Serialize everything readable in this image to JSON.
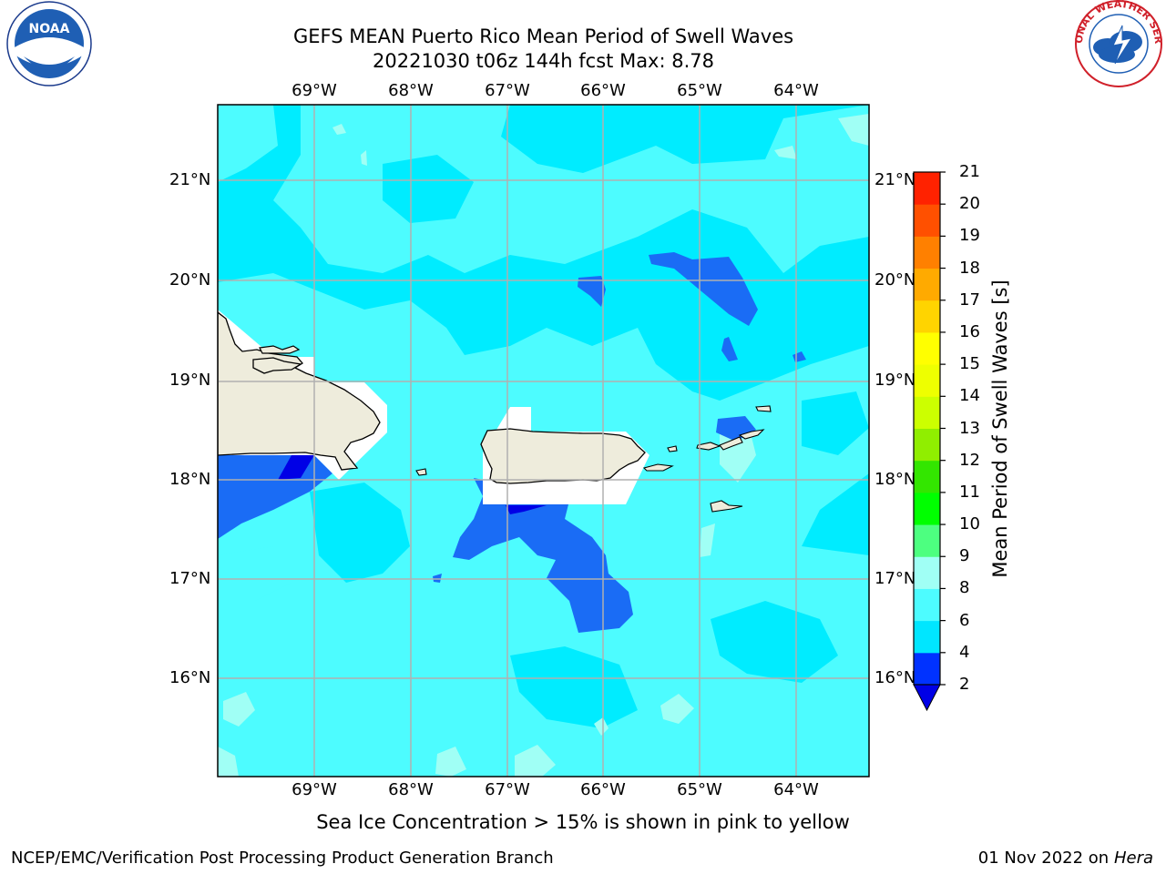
{
  "title_line1": "GEFS MEAN Puerto Rico Mean Period of Swell Waves",
  "title_line2": "20221030 t06z 144h fcst   Max: 8.78",
  "lon_labels": [
    "69°W",
    "68°W",
    "67°W",
    "66°W",
    "65°W",
    "64°W"
  ],
  "lat_labels": [
    "21°N",
    "20°N",
    "19°N",
    "18°N",
    "17°N",
    "16°N"
  ],
  "colorbar": {
    "label": "Mean Period of Swell Waves [s]",
    "ticks": [
      "2",
      "4",
      "6",
      "8",
      "9",
      "10",
      "11",
      "12",
      "13",
      "14",
      "15",
      "16",
      "17",
      "18",
      "19",
      "20",
      "21"
    ],
    "colors": [
      "#0032ff",
      "#00e6ff",
      "#4dfcff",
      "#a0fff5",
      "#4dff80",
      "#00ff00",
      "#33e600",
      "#90ee00",
      "#ccff00",
      "#eeff00",
      "#ffff00",
      "#ffd400",
      "#ffaa00",
      "#ff8000",
      "#ff5000",
      "#ff2200",
      "#ff0000"
    ],
    "under_color": "#0000e6"
  },
  "map_colors": {
    "band_2_4": "#1a6cf5",
    "band_4_6": "#00ecff",
    "band_6_8": "#4dfcff",
    "band_8_9": "#a0fff5",
    "land": "#eeecdc",
    "grid": "#b0b0b0"
  },
  "footnote": "Sea Ice Concentration > 15% is shown in pink to yellow",
  "credit": "NCEP/EMC/Verification Post Processing Product Generation Branch",
  "run_date": "01 Nov 2022 on",
  "run_host": "Hera",
  "logos": {
    "left": "NOAA",
    "right": "NATIONAL WEATHER SERVICE"
  }
}
